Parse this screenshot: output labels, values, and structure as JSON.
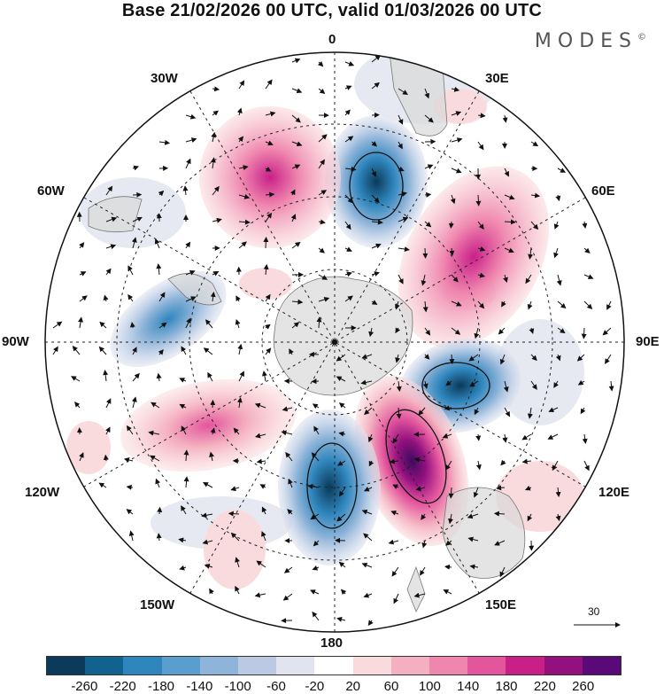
{
  "title": "Base 21/02/2026 00 UTC, valid 01/03/2026 00 UTC",
  "logo": "MODES",
  "logo_mark": "©",
  "lon_labels": {
    "top": "0",
    "top_left": "30W",
    "top_right": "30E",
    "upper_left": "60W",
    "upper_right": "60E",
    "left": "90W",
    "right": "90E",
    "lower_left": "120W",
    "lower_right": "120E",
    "bottom_left": "150W",
    "bottom_right": "150E",
    "bottom": "180"
  },
  "reference_vector": {
    "label": "30"
  },
  "colorbar": {
    "colors": [
      "#0b3a5a",
      "#11628f",
      "#2f86bd",
      "#5a9ecf",
      "#8fb4d9",
      "#bcc9e2",
      "#e1e3ef",
      "#ffffff",
      "#fadbdd",
      "#f4b0c0",
      "#ef86ae",
      "#e3559d",
      "#c92088",
      "#93117f",
      "#5a0a78"
    ],
    "labels": [
      "-260",
      "-220",
      "-180",
      "-140",
      "-100",
      "-60",
      "-20",
      "20",
      "60",
      "100",
      "140",
      "180",
      "220",
      "260"
    ]
  },
  "anomaly_centers": [
    {
      "name": "neg-0E",
      "value": -180,
      "color": "#2f86bd"
    },
    {
      "name": "pos-40W",
      "value": 140,
      "color": "#e3559d"
    },
    {
      "name": "pos-70E",
      "value": 180,
      "color": "#c92088"
    },
    {
      "name": "neg-105E",
      "value": -180,
      "color": "#2f86bd"
    },
    {
      "name": "pos-150E",
      "value": 260,
      "color": "#5a0a78"
    },
    {
      "name": "neg-170W",
      "value": -220,
      "color": "#11628f"
    },
    {
      "name": "pos-115W",
      "value": 100,
      "color": "#ef86ae"
    },
    {
      "name": "neg-80W",
      "value": -140,
      "color": "#5a9ecf"
    }
  ]
}
